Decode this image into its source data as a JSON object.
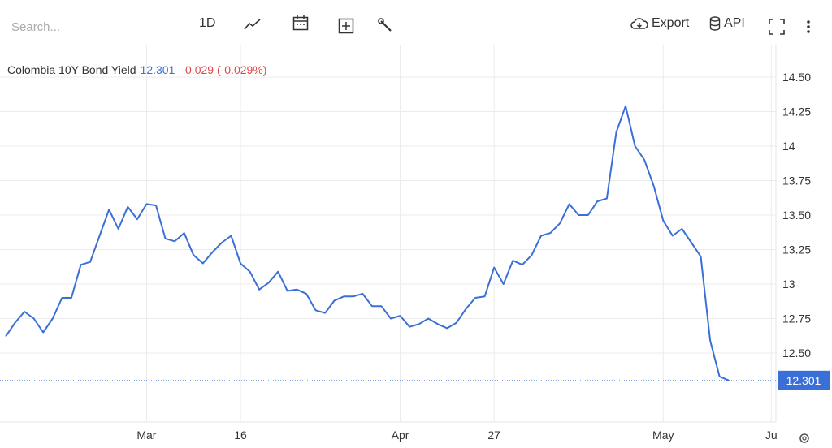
{
  "toolbar": {
    "search_placeholder": "Search...",
    "period": "1D",
    "export": "Export",
    "api": "API"
  },
  "chart_data": {
    "type": "line",
    "title": "Colombia 10Y Bond Yield",
    "change_label": "-0.029 (-0.029%)",
    "x": [
      0,
      1,
      2,
      3,
      4,
      5,
      6,
      7,
      8,
      9,
      10,
      11,
      12,
      13,
      14,
      15,
      16,
      17,
      18,
      19,
      20,
      21,
      22,
      23,
      24,
      25,
      26,
      27,
      28,
      29,
      30,
      31,
      32,
      33,
      34,
      35,
      36,
      37,
      38,
      39,
      40,
      41,
      42,
      43,
      44,
      45,
      46,
      47,
      48,
      49,
      50,
      51,
      52,
      53,
      54,
      55,
      56,
      57,
      58,
      59,
      60,
      61,
      62,
      63,
      64,
      65,
      66,
      67,
      68,
      69,
      70,
      71,
      72,
      73,
      74,
      75,
      76,
      77
    ],
    "series": [
      {
        "name": "Colombia 10Y Bond Yield",
        "color": "#3a6fd8",
        "values": [
          12.62,
          12.72,
          12.8,
          12.75,
          12.65,
          12.75,
          12.9,
          12.9,
          13.14,
          13.16,
          13.35,
          13.54,
          13.4,
          13.56,
          13.47,
          13.58,
          13.57,
          13.33,
          13.31,
          13.37,
          13.21,
          13.15,
          13.23,
          13.3,
          13.35,
          13.15,
          13.09,
          12.96,
          13.01,
          13.09,
          12.95,
          12.96,
          12.93,
          12.81,
          12.79,
          12.88,
          12.91,
          12.91,
          12.93,
          12.84,
          12.84,
          12.75,
          12.77,
          12.69,
          12.71,
          12.75,
          12.71,
          12.68,
          12.72,
          12.82,
          12.9,
          12.91,
          13.12,
          13.0,
          13.17,
          13.14,
          13.21,
          13.35,
          13.37,
          13.44,
          13.58,
          13.5,
          13.5,
          13.6,
          13.62,
          14.1,
          14.29,
          14.0,
          13.9,
          13.71,
          13.46,
          13.35,
          13.4,
          13.3,
          13.2,
          12.59,
          12.33,
          12.301
        ]
      }
    ],
    "xlim": [
      0,
      82
    ],
    "xticks": [
      {
        "value": 15,
        "label": "Mar"
      },
      {
        "value": 25,
        "label": "16"
      },
      {
        "value": 42,
        "label": "Apr"
      },
      {
        "value": 52,
        "label": "27"
      },
      {
        "value": 70,
        "label": "May"
      },
      {
        "value": 81.5,
        "label": "Ju"
      }
    ],
    "ylim": [
      12.0,
      14.7
    ],
    "yticks": [
      {
        "value": 12.5,
        "label": "12.50"
      },
      12.75,
      13,
      13.25,
      {
        "value": 13.5,
        "label": "13.50"
      },
      13.75,
      14,
      14.25,
      {
        "value": 14.5,
        "label": "14.50"
      }
    ],
    "grid": true
  }
}
